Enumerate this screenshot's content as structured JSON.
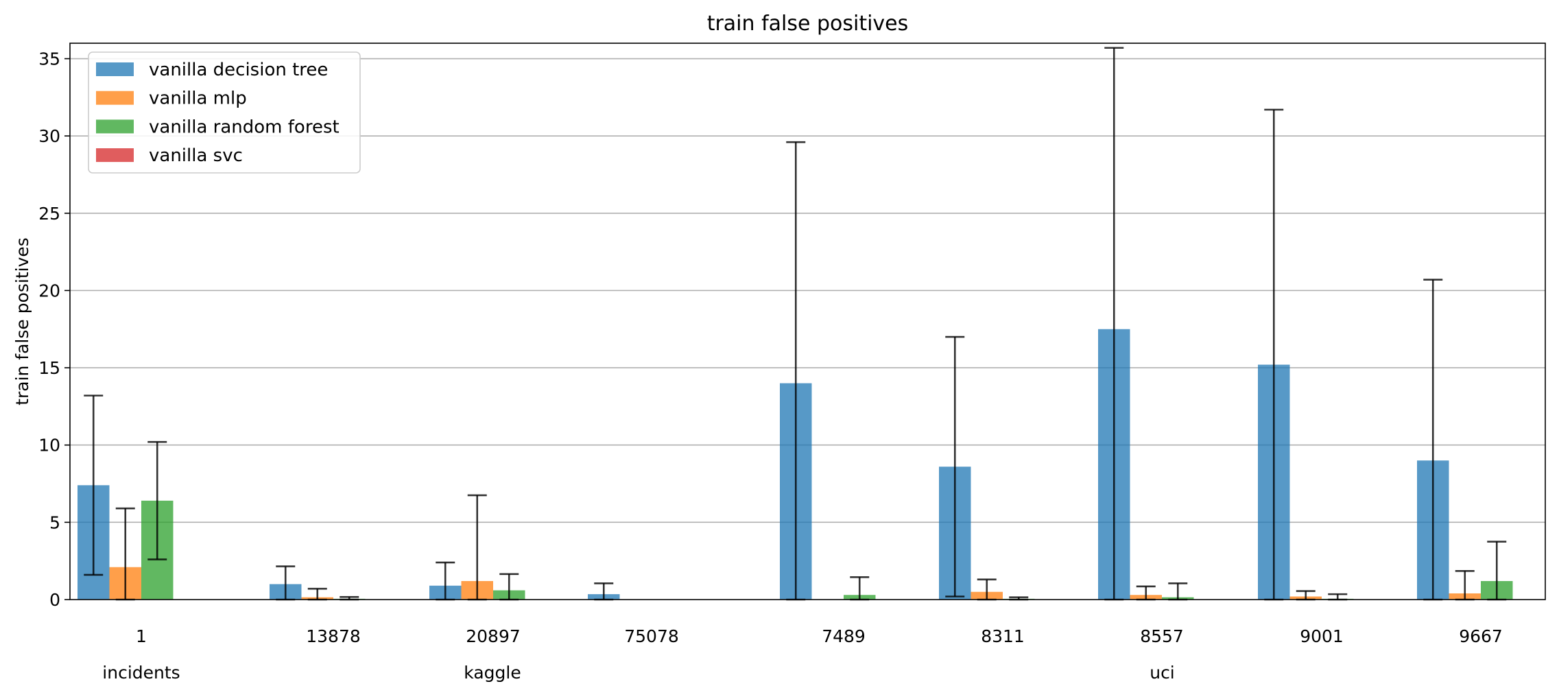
{
  "chart_data": {
    "type": "bar",
    "title": "train false positives",
    "xlabel": "",
    "ylabel": "train false positives",
    "ylim": [
      0,
      36
    ],
    "yticks": [
      0,
      5,
      10,
      15,
      20,
      25,
      30,
      35
    ],
    "grid": "y",
    "legend_position": "top-left",
    "categories": [
      "1",
      "13878",
      "20897",
      "75078",
      "7489",
      "8311",
      "8557",
      "9001",
      "9667"
    ],
    "category_groups": [
      {
        "label": "incidents",
        "categories": [
          "1"
        ]
      },
      {
        "label": "kaggle",
        "categories": [
          "13878",
          "20897",
          "75078"
        ]
      },
      {
        "label": "uci",
        "categories": [
          "7489",
          "8311",
          "8557",
          "9001",
          "9667"
        ]
      }
    ],
    "series": [
      {
        "name": "vanilla decision tree",
        "color": "#1f77b4",
        "values": [
          7.4,
          1.0,
          0.9,
          0.35,
          14.0,
          8.6,
          17.5,
          15.2,
          9.0
        ],
        "errors": [
          5.8,
          1.15,
          1.5,
          0.7,
          15.6,
          8.4,
          18.2,
          16.5,
          11.7
        ]
      },
      {
        "name": "vanilla mlp",
        "color": "#ff7f0e",
        "values": [
          2.1,
          0.15,
          1.2,
          0,
          0,
          0.5,
          0.3,
          0.2,
          0.4
        ],
        "errors": [
          3.8,
          0.55,
          5.55,
          0,
          0,
          0.8,
          0.55,
          0.35,
          1.45
        ]
      },
      {
        "name": "vanilla random forest",
        "color": "#2ca02c",
        "values": [
          6.4,
          0.05,
          0.6,
          0,
          0.3,
          0.05,
          0.15,
          0.05,
          1.2
        ],
        "errors": [
          3.8,
          0.12,
          1.05,
          0,
          1.15,
          0.1,
          0.9,
          0.3,
          2.55
        ]
      },
      {
        "name": "vanilla svc",
        "color": "#d62728",
        "values": [
          0,
          0,
          0,
          0,
          0,
          0,
          0,
          0,
          0
        ],
        "errors": [
          0,
          0,
          0,
          0,
          0,
          0,
          0,
          0,
          0
        ]
      }
    ]
  }
}
